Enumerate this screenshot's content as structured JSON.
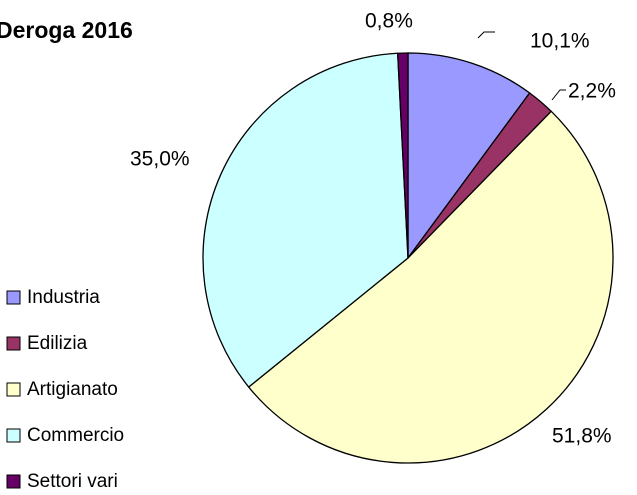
{
  "chart_data": {
    "type": "pie",
    "title": "Deroga 2016",
    "categories": [
      "Industria",
      "Edilizia",
      "Artigianato",
      "Commercio",
      "Settori vari"
    ],
    "values": [
      10.1,
      2.2,
      51.8,
      35.0,
      0.8
    ],
    "value_labels": [
      "10,1%",
      "2,2%",
      "51,8%",
      "35,0%",
      "0,8%"
    ],
    "colors": [
      "#9999ff",
      "#993366",
      "#ffffcc",
      "#ccffff",
      "#660066"
    ],
    "legend": "left"
  }
}
